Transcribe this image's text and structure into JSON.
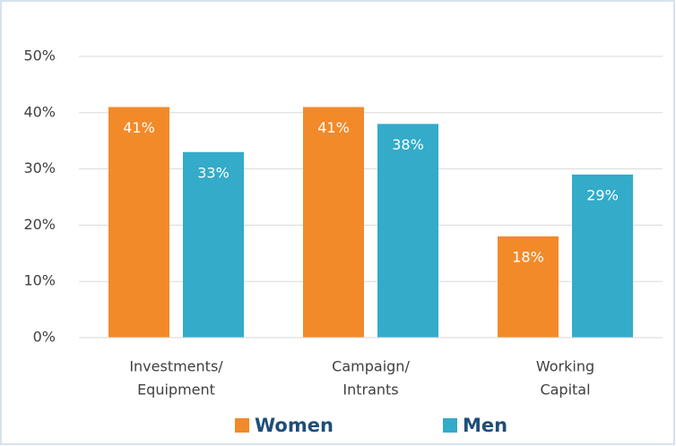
{
  "chart_data": {
    "type": "bar",
    "categories": [
      [
        "Investments/",
        "Equipment"
      ],
      [
        "Campaign/",
        "Intrants"
      ],
      [
        "Working",
        "Capital"
      ]
    ],
    "series": [
      {
        "name": "Women",
        "color": "#f28a2a",
        "values": [
          41,
          41,
          18
        ],
        "value_labels": [
          "41%",
          "41%",
          "18%"
        ]
      },
      {
        "name": "Men",
        "color": "#33abc9",
        "values": [
          33,
          38,
          29
        ],
        "value_labels": [
          "33%",
          "38%",
          "29%"
        ]
      }
    ],
    "ylim": [
      0,
      50
    ],
    "yticks": [
      {
        "value": 0,
        "label": "0%"
      },
      {
        "value": 10,
        "label": "10%"
      },
      {
        "value": 20,
        "label": "20%"
      },
      {
        "value": 30,
        "label": "30%"
      },
      {
        "value": 40,
        "label": "40%"
      },
      {
        "value": 50,
        "label": "50%"
      }
    ],
    "grid": true,
    "legend": "bottom"
  }
}
